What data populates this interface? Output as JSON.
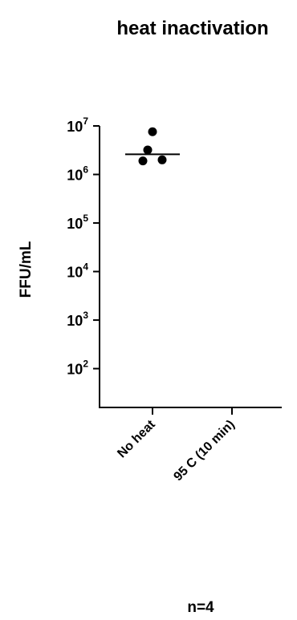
{
  "chart_data": {
    "type": "scatter",
    "title": "heat inactivation",
    "ylabel": "FFU/mL",
    "xlabel": "",
    "y_scale": "log10",
    "ylim": [
      15.85,
      10000000
    ],
    "y_ticks": [
      {
        "base": "10",
        "exp": "7",
        "value": 10000000
      },
      {
        "base": "10",
        "exp": "6",
        "value": 1000000
      },
      {
        "base": "10",
        "exp": "5",
        "value": 100000
      },
      {
        "base": "10",
        "exp": "4",
        "value": 10000
      },
      {
        "base": "10",
        "exp": "3",
        "value": 1000
      },
      {
        "base": "10",
        "exp": "2",
        "value": 100
      }
    ],
    "categories": [
      "No heat",
      "95 C (10 min)"
    ],
    "points": [
      {
        "category": "No heat",
        "values": [
          7600000,
          3200000,
          1900000,
          2000000
        ],
        "mean": 2600000
      },
      {
        "category": "95 C (10 min)",
        "values": [],
        "mean": null
      }
    ],
    "grid": false,
    "legend": "none"
  },
  "annotation": "n=4"
}
